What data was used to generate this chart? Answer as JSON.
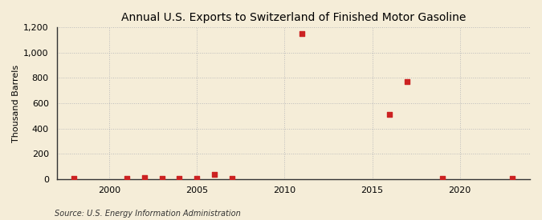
{
  "title": "Annual U.S. Exports to Switzerland of Finished Motor Gasoline",
  "ylabel": "Thousand Barrels",
  "source": "Source: U.S. Energy Information Administration",
  "background_color": "#f5edd8",
  "plot_background_color": "#f5edd8",
  "marker_color": "#cc2222",
  "marker_size": 18,
  "years": [
    1998,
    2001,
    2002,
    2003,
    2004,
    2005,
    2006,
    2007,
    2011,
    2016,
    2017,
    2019,
    2023
  ],
  "values": [
    2,
    5,
    10,
    5,
    3,
    3,
    38,
    5,
    1150,
    510,
    770,
    5,
    3
  ],
  "xlim": [
    1997,
    2024
  ],
  "ylim": [
    0,
    1200
  ],
  "yticks": [
    0,
    200,
    400,
    600,
    800,
    1000,
    1200
  ],
  "xticks": [
    2000,
    2005,
    2010,
    2015,
    2020
  ],
  "grid_color": "#bbbbbb",
  "title_fontsize": 10,
  "label_fontsize": 8,
  "tick_fontsize": 8,
  "source_fontsize": 7
}
